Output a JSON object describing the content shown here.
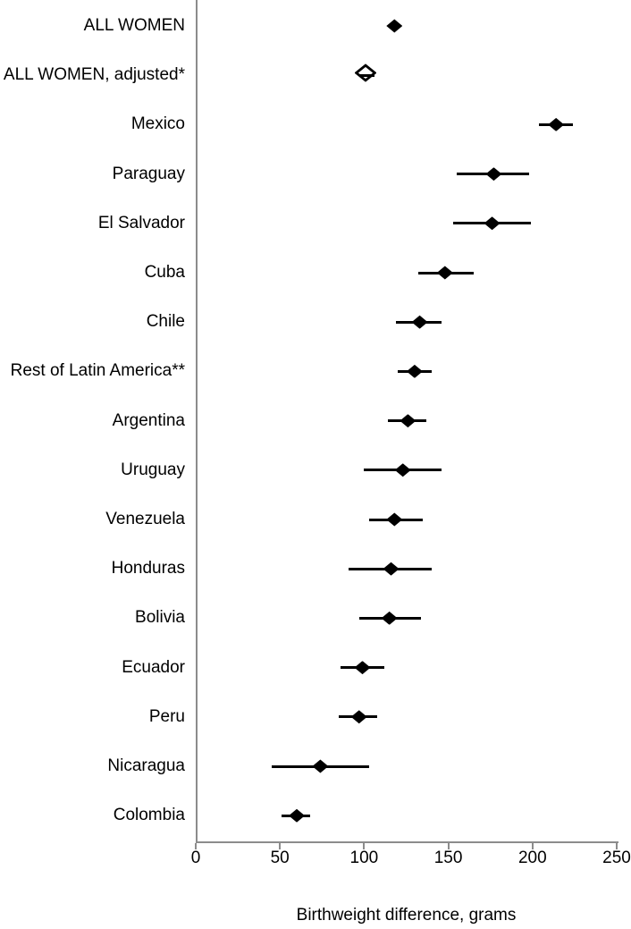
{
  "colors": {
    "axis": "#8c8c8c",
    "marker": "#000000",
    "ci_line": "#000000",
    "text": "#000000",
    "background": "#ffffff"
  },
  "chart_data": {
    "type": "scatter",
    "variant": "forest-plot",
    "title": "",
    "xlabel": "Birthweight difference, grams",
    "ylabel": "",
    "xlim": [
      0,
      250
    ],
    "xticks": [
      0,
      50,
      100,
      150,
      200,
      250
    ],
    "grid": false,
    "legend": false,
    "points": [
      {
        "label": "ALL WOMEN",
        "value": 118,
        "ci_low": null,
        "ci_high": null,
        "marker": "filled-diamond"
      },
      {
        "label": "ALL WOMEN, adjusted*",
        "value": 101,
        "ci_low": 97,
        "ci_high": 106,
        "marker": "open-diamond"
      },
      {
        "label": "Mexico",
        "value": 214,
        "ci_low": 204,
        "ci_high": 224,
        "marker": "filled-diamond"
      },
      {
        "label": "Paraguay",
        "value": 177,
        "ci_low": 155,
        "ci_high": 198,
        "marker": "filled-diamond"
      },
      {
        "label": "El Salvador",
        "value": 176,
        "ci_low": 153,
        "ci_high": 199,
        "marker": "filled-diamond"
      },
      {
        "label": "Cuba",
        "value": 148,
        "ci_low": 132,
        "ci_high": 165,
        "marker": "filled-diamond"
      },
      {
        "label": "Chile",
        "value": 133,
        "ci_low": 119,
        "ci_high": 146,
        "marker": "filled-diamond"
      },
      {
        "label": "Rest of Latin America**",
        "value": 130,
        "ci_low": 120,
        "ci_high": 140,
        "marker": "filled-diamond"
      },
      {
        "label": "Argentina",
        "value": 126,
        "ci_low": 114,
        "ci_high": 137,
        "marker": "filled-diamond"
      },
      {
        "label": "Uruguay",
        "value": 123,
        "ci_low": 100,
        "ci_high": 146,
        "marker": "filled-diamond"
      },
      {
        "label": "Venezuela",
        "value": 118,
        "ci_low": 103,
        "ci_high": 135,
        "marker": "filled-diamond"
      },
      {
        "label": "Honduras",
        "value": 116,
        "ci_low": 91,
        "ci_high": 140,
        "marker": "filled-diamond"
      },
      {
        "label": "Bolivia",
        "value": 115,
        "ci_low": 97,
        "ci_high": 134,
        "marker": "filled-diamond"
      },
      {
        "label": "Ecuador",
        "value": 99,
        "ci_low": 86,
        "ci_high": 112,
        "marker": "filled-diamond"
      },
      {
        "label": "Peru",
        "value": 97,
        "ci_low": 85,
        "ci_high": 108,
        "marker": "filled-diamond"
      },
      {
        "label": "Nicaragua",
        "value": 74,
        "ci_low": 45,
        "ci_high": 103,
        "marker": "filled-diamond"
      },
      {
        "label": "Colombia",
        "value": 60,
        "ci_low": 51,
        "ci_high": 68,
        "marker": "filled-diamond"
      }
    ]
  }
}
